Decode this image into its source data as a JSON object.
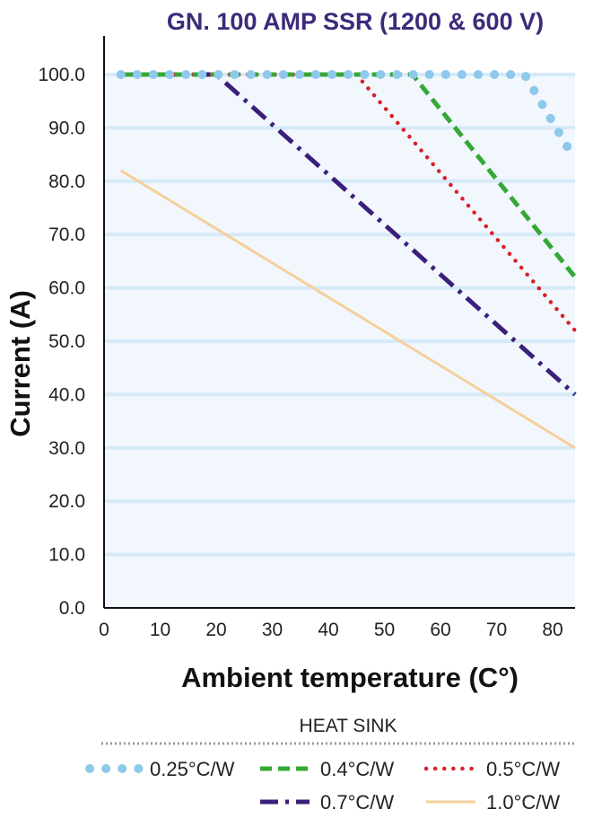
{
  "chart_data": {
    "type": "line",
    "title": "GN. 100  AMP  SSR (1200 & 600 V)",
    "xlabel": "Ambient temperature (C°)",
    "ylabel": "Current (A)",
    "xlim": [
      0,
      84
    ],
    "ylim": [
      0,
      100
    ],
    "x_ticks": [
      "0",
      "10",
      "20",
      "30",
      "40",
      "50",
      "60",
      "70",
      "80"
    ],
    "y_ticks": [
      "0.0",
      "10.0",
      "20.0",
      "30.0",
      "40.0",
      "50.0",
      "60.0",
      "70.0",
      "80.0",
      "90.0",
      "100.0"
    ],
    "grid": "horizontal",
    "legend": {
      "title": "HEAT SINK",
      "placement": "bottom"
    },
    "series": [
      {
        "name": "0.25°C/W",
        "color": "#8ec9ec",
        "style": "dots",
        "x": [
          3,
          75,
          84
        ],
        "y": [
          100,
          100,
          84
        ]
      },
      {
        "name": "0.4°C/W",
        "color": "#35a835",
        "style": "dashed",
        "x": [
          3,
          55,
          84
        ],
        "y": [
          100,
          100,
          62
        ]
      },
      {
        "name": "0.5°C/W",
        "color": "#d8202b",
        "style": "dotted",
        "x": [
          3,
          45,
          84
        ],
        "y": [
          100,
          100,
          52
        ]
      },
      {
        "name": "0.7°C/W",
        "color": "#3b1f7a",
        "style": "dash-dot",
        "x": [
          3,
          20,
          84
        ],
        "y": [
          100,
          100,
          40
        ]
      },
      {
        "name": "1.0°C/W",
        "color": "#f6cf9b",
        "style": "solid",
        "x": [
          3,
          84
        ],
        "y": [
          82,
          30
        ]
      }
    ]
  }
}
